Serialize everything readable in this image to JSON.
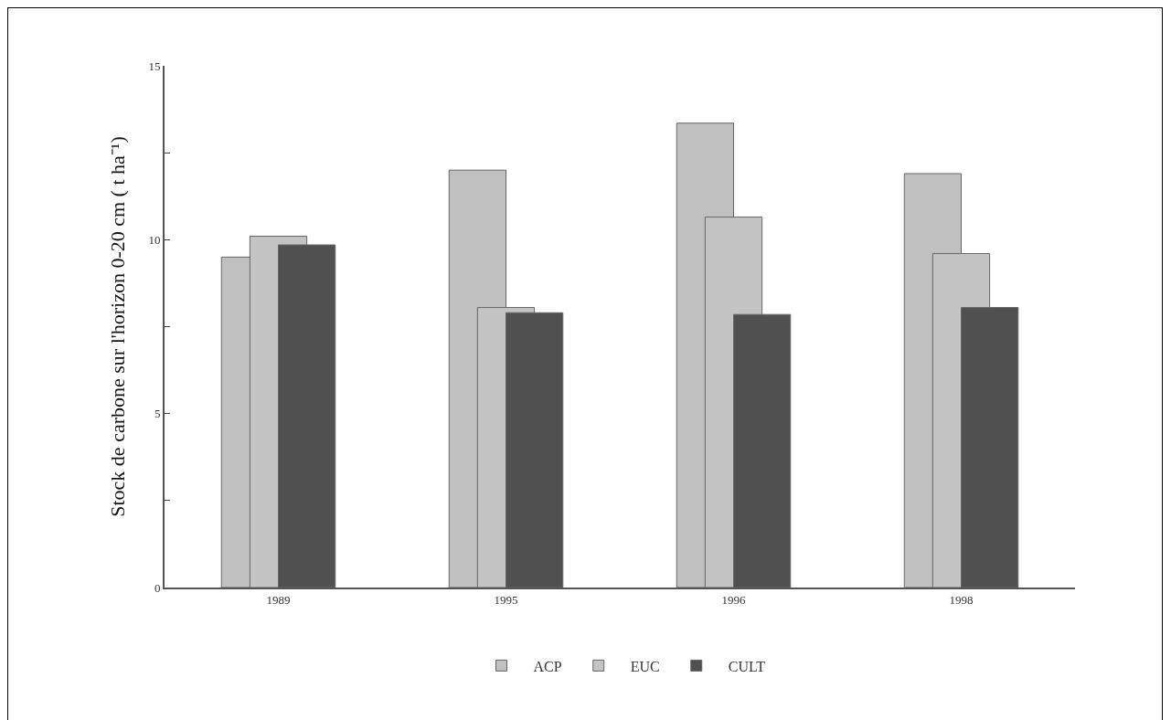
{
  "chart_data": {
    "type": "bar",
    "ylabel": "Stock de carbone sur l'horizon 0-20 cm ( t ha⁻¹)",
    "categories": [
      "1989",
      "1995",
      "1996",
      "1998"
    ],
    "series": [
      {
        "name": "ACP",
        "color": "#c0c0c0",
        "values": [
          9.5,
          12.0,
          13.35,
          11.9
        ]
      },
      {
        "name": "EUC",
        "color": "#c4c4c4",
        "values": [
          10.1,
          8.05,
          10.65,
          9.6
        ]
      },
      {
        "name": "CULT",
        "color": "#505050",
        "values": [
          9.85,
          7.9,
          7.85,
          8.05
        ]
      }
    ],
    "ylim": [
      0,
      15
    ],
    "yticks": [
      0,
      {
        "value": 2.5,
        "label": null
      },
      5,
      {
        "value": 7.5,
        "label": null
      },
      10,
      {
        "value": 12.5,
        "label": null
      },
      15
    ],
    "grid": false,
    "legend": "bottom"
  }
}
